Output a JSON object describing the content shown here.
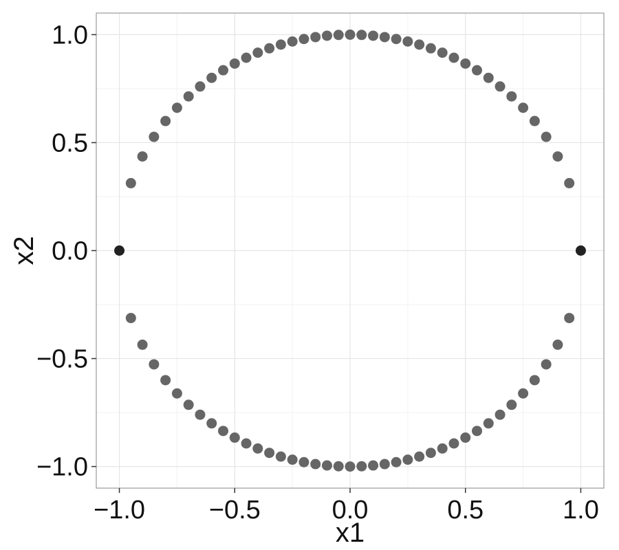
{
  "chart_data": {
    "type": "scatter",
    "title": "",
    "xlabel": "x1",
    "ylabel": "x2",
    "xlim": [
      -1.1,
      1.1
    ],
    "ylim": [
      -1.1,
      1.1
    ],
    "x_ticks": [
      -1.0,
      -0.5,
      0.0,
      0.5,
      1.0
    ],
    "y_ticks": [
      -1.0,
      -0.5,
      0.0,
      0.5,
      1.0
    ],
    "x_tick_labels": [
      "−1.0",
      "−0.5",
      "0.0",
      "0.5",
      "1.0"
    ],
    "y_tick_labels": [
      "−1.0",
      "−0.5",
      "0.0",
      "0.5",
      "1.0"
    ],
    "grid": true,
    "legend": "none",
    "colors": {
      "point": "#666666",
      "endpoint": "#222222",
      "grid": "#e5e5e5",
      "grid_minor": "#f2f2f2",
      "panel_border": "#9a9a9a"
    },
    "x_values": [
      -1.0,
      -0.95,
      -0.9,
      -0.85,
      -0.8,
      -0.75,
      -0.7,
      -0.65,
      -0.6,
      -0.55,
      -0.5,
      -0.45,
      -0.4,
      -0.35,
      -0.3,
      -0.25,
      -0.2,
      -0.15,
      -0.1,
      -0.05,
      0.0,
      0.05,
      0.1,
      0.15,
      0.2,
      0.25,
      0.3,
      0.35,
      0.4,
      0.45,
      0.5,
      0.55,
      0.6,
      0.65,
      0.7,
      0.75,
      0.8,
      0.85,
      0.9,
      0.95,
      1.0
    ],
    "note_rule": "y = ±sqrt(1 - x^2); endpoints at x = ±1 drawn darker"
  }
}
